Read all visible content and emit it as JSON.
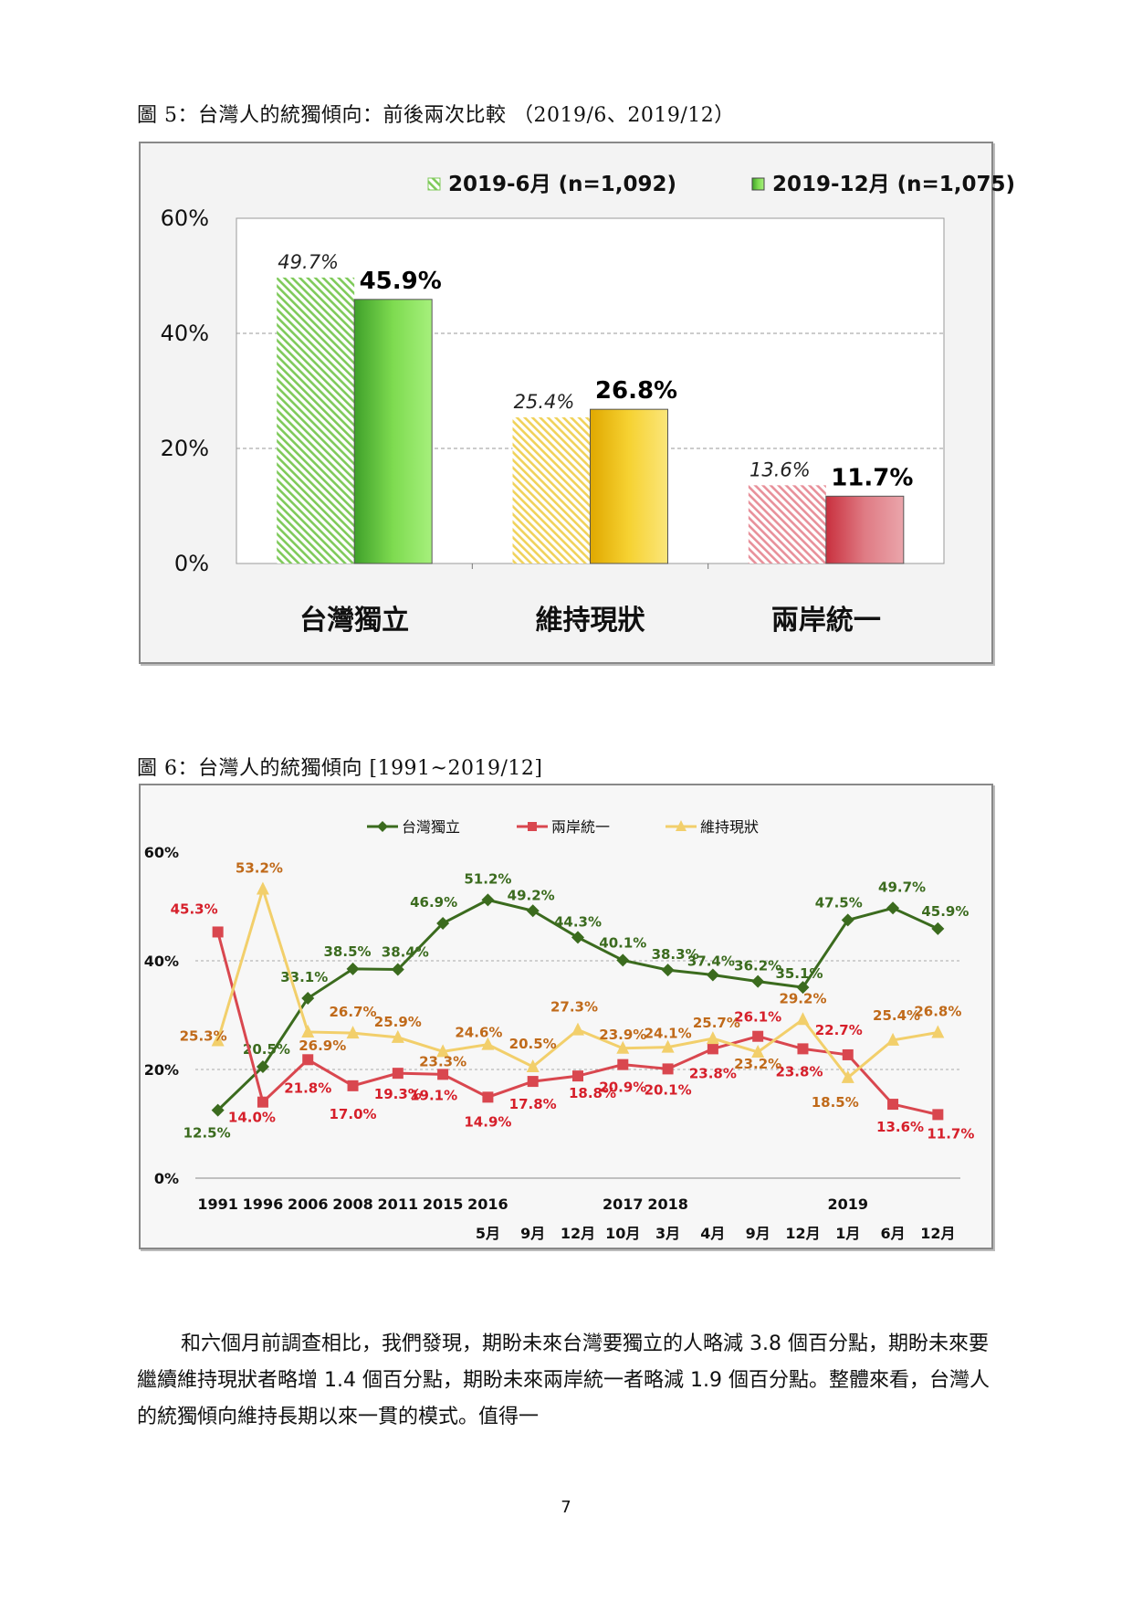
{
  "figure5": {
    "caption": "圖 5：台灣人的統獨傾向：前後兩次比較 （2019/6、2019/12）",
    "chart_data": {
      "type": "bar",
      "categories": [
        "台灣獨立",
        "維持現狀",
        "兩岸統一"
      ],
      "series": [
        {
          "name": "2019-6月 (n=1,092)",
          "values": [
            49.7,
            25.4,
            13.6
          ],
          "labels": [
            "49.7%",
            "25.4%",
            "13.6%"
          ]
        },
        {
          "name": "2019-12月 (n=1,075)",
          "values": [
            45.9,
            26.8,
            11.7
          ],
          "labels": [
            "45.9%",
            "26.8%",
            "11.7%"
          ]
        }
      ],
      "yticks": [
        "0%",
        "20%",
        "40%",
        "60%"
      ],
      "ylim": [
        0,
        60
      ],
      "grid": true,
      "legend": "top",
      "colors": {
        "independence": "#6cc24a",
        "status_quo": "#f2c41d",
        "unification": "#e06d75"
      }
    }
  },
  "figure6": {
    "caption": "圖 6：台灣人的統獨傾向 [1991~2019/12]",
    "chart_data": {
      "type": "line",
      "x_top": [
        "1991",
        "1996",
        "2006",
        "2008",
        "2011",
        "2015",
        "2016",
        "",
        "",
        "2017",
        "2018",
        "",
        "",
        "",
        "2019",
        "",
        ""
      ],
      "x_bottom": [
        "",
        "",
        "",
        "",
        "",
        "",
        "5月",
        "9月",
        "12月",
        "10月",
        "3月",
        "4月",
        "9月",
        "12月",
        "1月",
        "6月",
        "12月"
      ],
      "series": [
        {
          "name": "台灣獨立",
          "color": "#3b6b1e",
          "marker": "diamond",
          "values": [
            12.5,
            20.5,
            33.1,
            38.5,
            38.4,
            46.9,
            51.2,
            49.2,
            44.3,
            40.1,
            38.3,
            37.4,
            36.2,
            35.1,
            47.5,
            49.7,
            45.9
          ],
          "labels": [
            "12.5%",
            "20.5%",
            "33.1%",
            "38.5%",
            "38.4%",
            "46.9%",
            "51.2%",
            "49.2%",
            "44.3%",
            "40.1%",
            "38.3%",
            "37.4%",
            "36.2%",
            "35.1%",
            "47.5%",
            "49.7%",
            "45.9%"
          ]
        },
        {
          "name": "兩岸統一",
          "color": "#d9474f",
          "marker": "square",
          "values": [
            45.3,
            14.0,
            21.8,
            17.0,
            19.3,
            19.1,
            14.9,
            17.8,
            18.8,
            20.9,
            20.1,
            23.8,
            26.1,
            23.8,
            22.7,
            13.6,
            11.7
          ],
          "labels": [
            "45.3%",
            "14.0%",
            "21.8%",
            "17.0%",
            "19.3%",
            "19.1%",
            "14.9%",
            "17.8%",
            "18.8%",
            "20.9%",
            "20.1%",
            "23.8%",
            "26.1%",
            "23.8%",
            "22.7%",
            "13.6%",
            "11.7%"
          ]
        },
        {
          "name": "維持現狀",
          "color": "#f2cf6b",
          "marker": "triangle",
          "values": [
            25.3,
            53.2,
            26.9,
            26.7,
            25.9,
            23.3,
            24.6,
            20.5,
            27.3,
            23.9,
            24.1,
            25.7,
            23.2,
            29.2,
            18.5,
            25.4,
            26.8
          ],
          "labels": [
            "25.3%",
            "53.2%",
            "26.9%",
            "26.7%",
            "25.9%",
            "23.3%",
            "24.6%",
            "20.5%",
            "27.3%",
            "23.9%",
            "24.1%",
            "25.7%",
            "23.2%",
            "29.2%",
            "18.5%",
            "25.4%",
            "26.8%"
          ]
        }
      ],
      "yticks": [
        "0%",
        "20%",
        "40%",
        "60%"
      ],
      "ylim": [
        0,
        60
      ],
      "grid": true,
      "legend": "top"
    }
  },
  "paragraph": "和六個月前調查相比，我們發現，期盼未來台灣要獨立的人略減 3.8 個百分點，期盼未來要繼續維持現狀者略增 1.4 個百分點，期盼未來兩岸統一者略減 1.9 個百分點。整體來看，台灣人的統獨傾向維持長期以來一貫的模式。值得一",
  "page_number": "7"
}
